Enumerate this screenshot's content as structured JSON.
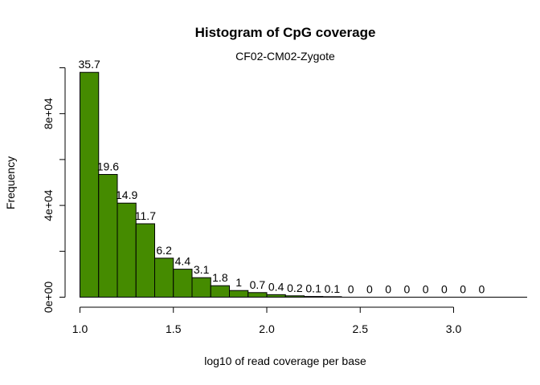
{
  "chart_data": {
    "type": "bar",
    "title": "Histogram of CpG coverage",
    "subtitle": "CF02-CM02-Zygote",
    "xlabel": "log10 of read coverage per base",
    "ylabel": "Frequency",
    "bar_color": "#458B00",
    "bin_width": 0.1,
    "x_start": 1.0,
    "xlim": [
      1.0,
      3.2
    ],
    "ylim": [
      0,
      100000
    ],
    "x_ticks": [
      1.0,
      1.5,
      2.0,
      2.5,
      3.0
    ],
    "x_tick_labels": [
      "1.0",
      "1.5",
      "2.0",
      "2.5",
      "3.0"
    ],
    "y_ticks": [
      0,
      20000,
      40000,
      60000,
      80000,
      100000
    ],
    "y_tick_labels": [
      "0e+00",
      "",
      "4e+04",
      "",
      "8e+04",
      ""
    ],
    "values": [
      98000,
      53500,
      41000,
      32000,
      17000,
      12200,
      8500,
      5000,
      2900,
      2000,
      1100,
      600,
      300,
      200,
      0,
      0,
      0,
      0,
      0,
      0,
      0,
      0
    ],
    "bar_labels": [
      "35.7",
      "19.6",
      "14.9",
      "11.7",
      "6.2",
      "4.4",
      "3.1",
      "1.8",
      "1",
      "0.7",
      "0.4",
      "0.2",
      "0.1",
      "0.1",
      "0",
      "0",
      "0",
      "0",
      "0",
      "0",
      "0",
      "0"
    ]
  }
}
